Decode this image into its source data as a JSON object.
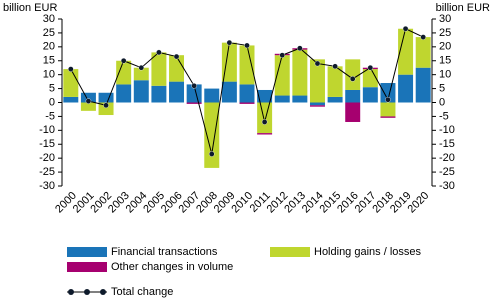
{
  "chart_data": {
    "type": "bar",
    "stacked": true,
    "y_label": "billion EUR",
    "y2_label": "billion EUR",
    "categories": [
      "2000",
      "2001",
      "2002",
      "2003",
      "2004",
      "2005",
      "2006",
      "2007",
      "2008",
      "2009",
      "2010",
      "2011",
      "2012",
      "2013",
      "2014",
      "2015",
      "2016",
      "2017",
      "2018",
      "2019",
      "2020"
    ],
    "series": [
      {
        "name": "Financial transactions",
        "color": "#1a74b8",
        "values": [
          2,
          3.5,
          3.5,
          6.5,
          8,
          6,
          7.5,
          6.5,
          5,
          7.5,
          6.5,
          4.5,
          2.5,
          2.5,
          -1,
          2,
          4.5,
          5.5,
          7,
          10,
          12.5
        ]
      },
      {
        "name": "Holding gains / losses",
        "color": "#bfd62f",
        "values": [
          10,
          -3,
          -4.5,
          8.5,
          4.5,
          12,
          9.5,
          0,
          -23.5,
          14,
          14,
          -11,
          14.5,
          16.5,
          15.5,
          11,
          11,
          6.5,
          -5,
          16.5,
          11
        ]
      },
      {
        "name": "Other changes in volume",
        "color": "#a6006f",
        "values": [
          0,
          0,
          0,
          0,
          0,
          0,
          0,
          -0.5,
          0,
          0,
          -0.5,
          -0.5,
          0.5,
          0.5,
          -0.5,
          0,
          -7,
          0.5,
          -0.5,
          0,
          0
        ]
      },
      {
        "name": "Total change",
        "type": "line",
        "color": "#000000",
        "values": [
          12,
          0.5,
          -1,
          15,
          12.5,
          18,
          16.5,
          6,
          -18.5,
          21.5,
          20.5,
          -7,
          17,
          19.5,
          14,
          13,
          8.5,
          12.5,
          1,
          26.5,
          23.5
        ]
      }
    ],
    "ylim": [
      -30,
      30
    ],
    "yticks": [
      -30,
      -25,
      -20,
      -15,
      -10,
      -5,
      0,
      5,
      10,
      15,
      20,
      25,
      30
    ],
    "y2lim": [
      -30,
      30
    ],
    "y2ticks": [
      -30,
      -25,
      -20,
      -15,
      -10,
      -5,
      0,
      5,
      10,
      15,
      20,
      25,
      30
    ],
    "grid": false
  }
}
